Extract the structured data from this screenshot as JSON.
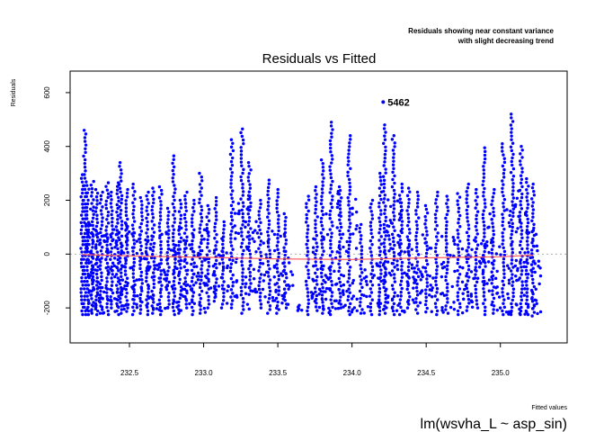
{
  "chart_data": {
    "type": "scatter",
    "title": "Residuals vs Fitted",
    "subtitle_lines": [
      "Residuals showing near constant variance",
      "with slight decreasing trend"
    ],
    "xlabel": "Fitted values",
    "ylabel": "Residuals",
    "caption": "lm(wsvha_L ~ asp_sin)",
    "xlim": [
      232.1,
      235.45
    ],
    "ylim": [
      -330,
      680
    ],
    "xticks": [
      232.5,
      233.0,
      233.5,
      234.0,
      234.5,
      235.0
    ],
    "xtick_labels": [
      "232.5",
      "233.0",
      "233.5",
      "234.0",
      "234.5",
      "235.0"
    ],
    "yticks": [
      -200,
      0,
      200,
      400,
      600
    ],
    "ytick_labels": [
      "-200",
      "0",
      "200",
      "400",
      "600"
    ],
    "grid": false,
    "zero_reference_line": true,
    "point_color": "#0000ff",
    "smooth_color": "#ff5a5a",
    "reference_color": "#b0b0b0",
    "outlier_label": "5462",
    "outlier_point": {
      "x": 234.21,
      "y": 565
    },
    "smooth_line": {
      "x": [
        232.18,
        232.6,
        233.0,
        233.5,
        234.0,
        234.5,
        235.0,
        235.22
      ],
      "y": [
        -2,
        -8,
        -12,
        -18,
        -20,
        -14,
        -10,
        -4
      ]
    },
    "columns": [
      {
        "x": 232.18,
        "ymin": -225,
        "ymax": 295
      },
      {
        "x": 232.2,
        "ymin": -225,
        "ymax": 460
      },
      {
        "x": 232.22,
        "ymin": -225,
        "ymax": 255
      },
      {
        "x": 232.25,
        "ymin": -220,
        "ymax": 270
      },
      {
        "x": 232.28,
        "ymin": -225,
        "ymax": 240
      },
      {
        "x": 232.31,
        "ymin": -220,
        "ymax": 230
      },
      {
        "x": 232.35,
        "ymin": -225,
        "ymax": 265
      },
      {
        "x": 232.38,
        "ymin": -200,
        "ymax": 230
      },
      {
        "x": 232.42,
        "ymin": -225,
        "ymax": 265
      },
      {
        "x": 232.44,
        "ymin": -220,
        "ymax": 340
      },
      {
        "x": 232.48,
        "ymin": -200,
        "ymax": 240
      },
      {
        "x": 232.53,
        "ymin": -225,
        "ymax": 260
      },
      {
        "x": 232.58,
        "ymin": -220,
        "ymax": 210
      },
      {
        "x": 232.62,
        "ymin": -225,
        "ymax": 230
      },
      {
        "x": 232.66,
        "ymin": -220,
        "ymax": 245
      },
      {
        "x": 232.71,
        "ymin": -225,
        "ymax": 250
      },
      {
        "x": 232.76,
        "ymin": -200,
        "ymax": 170
      },
      {
        "x": 232.8,
        "ymin": -225,
        "ymax": 365
      },
      {
        "x": 232.84,
        "ymin": -220,
        "ymax": 200
      },
      {
        "x": 232.88,
        "ymin": -200,
        "ymax": 230
      },
      {
        "x": 232.93,
        "ymin": -225,
        "ymax": 200
      },
      {
        "x": 232.98,
        "ymin": -220,
        "ymax": 300
      },
      {
        "x": 233.03,
        "ymin": -200,
        "ymax": 180
      },
      {
        "x": 233.08,
        "ymin": -175,
        "ymax": 210
      },
      {
        "x": 233.13,
        "ymin": -200,
        "ymax": 120
      },
      {
        "x": 233.19,
        "ymin": -200,
        "ymax": 425
      },
      {
        "x": 233.26,
        "ymin": -220,
        "ymax": 465
      },
      {
        "x": 233.31,
        "ymin": -150,
        "ymax": 340
      },
      {
        "x": 233.38,
        "ymin": -200,
        "ymax": 200
      },
      {
        "x": 233.44,
        "ymin": -220,
        "ymax": 275
      },
      {
        "x": 233.5,
        "ymin": -220,
        "ymax": 240
      },
      {
        "x": 233.55,
        "ymin": -200,
        "ymax": 150
      },
      {
        "x": 233.64,
        "ymin": -210,
        "ymax": -190
      },
      {
        "x": 233.7,
        "ymin": -225,
        "ymax": 215
      },
      {
        "x": 233.76,
        "ymin": -210,
        "ymax": 250
      },
      {
        "x": 233.8,
        "ymin": -220,
        "ymax": 350
      },
      {
        "x": 233.86,
        "ymin": -225,
        "ymax": 490
      },
      {
        "x": 233.92,
        "ymin": -200,
        "ymax": 250
      },
      {
        "x": 233.98,
        "ymin": -225,
        "ymax": 440
      },
      {
        "x": 234.06,
        "ymin": -220,
        "ymax": 110
      },
      {
        "x": 234.13,
        "ymin": -225,
        "ymax": 200
      },
      {
        "x": 234.19,
        "ymin": -225,
        "ymax": 300
      },
      {
        "x": 234.22,
        "ymin": -220,
        "ymax": 480
      },
      {
        "x": 234.28,
        "ymin": -225,
        "ymax": 440
      },
      {
        "x": 234.33,
        "ymin": -225,
        "ymax": 260
      },
      {
        "x": 234.38,
        "ymin": -200,
        "ymax": 245
      },
      {
        "x": 234.44,
        "ymin": -220,
        "ymax": 230
      },
      {
        "x": 234.5,
        "ymin": -215,
        "ymax": 180
      },
      {
        "x": 234.57,
        "ymin": -225,
        "ymax": 230
      },
      {
        "x": 234.64,
        "ymin": -220,
        "ymax": 215
      },
      {
        "x": 234.72,
        "ymin": -225,
        "ymax": 225
      },
      {
        "x": 234.78,
        "ymin": -210,
        "ymax": 260
      },
      {
        "x": 234.84,
        "ymin": -200,
        "ymax": 240
      },
      {
        "x": 234.89,
        "ymin": -225,
        "ymax": 395
      },
      {
        "x": 234.95,
        "ymin": -220,
        "ymax": 240
      },
      {
        "x": 235.02,
        "ymin": -225,
        "ymax": 410
      },
      {
        "x": 235.08,
        "ymin": -225,
        "ymax": 520
      },
      {
        "x": 235.14,
        "ymin": -225,
        "ymax": 400
      },
      {
        "x": 235.18,
        "ymin": -225,
        "ymax": 280
      },
      {
        "x": 235.22,
        "ymin": -230,
        "ymax": 260
      }
    ]
  }
}
